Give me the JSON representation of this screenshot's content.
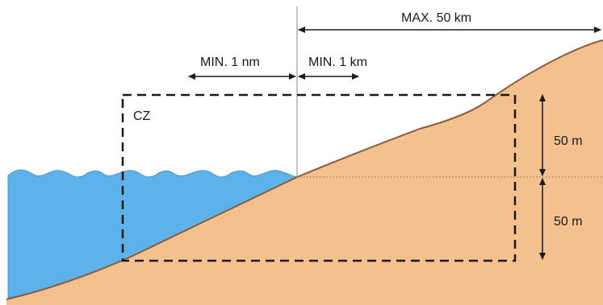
{
  "labels": {
    "max_distance": "MAX. 50 km",
    "min_seaward": "MIN. 1 nm",
    "min_landward": "MIN. 1 km",
    "zone": "CZ",
    "height_above": "50 m",
    "height_below": "50 m"
  },
  "colors": {
    "sea": "#5db2ea",
    "land": "#f4c08e",
    "land_edge": "#8a5a3c",
    "lines": "#1a1a1a",
    "guide": "#888888"
  }
}
